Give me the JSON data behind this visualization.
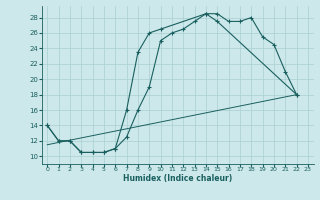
{
  "xlabel": "Humidex (Indice chaleur)",
  "xlim": [
    -0.5,
    23.5
  ],
  "ylim": [
    9.0,
    29.5
  ],
  "xticks": [
    0,
    1,
    2,
    3,
    4,
    5,
    6,
    7,
    8,
    9,
    10,
    11,
    12,
    13,
    14,
    15,
    16,
    17,
    18,
    19,
    20,
    21,
    22,
    23
  ],
  "yticks": [
    10,
    12,
    14,
    16,
    18,
    20,
    22,
    24,
    26,
    28
  ],
  "background_color": "#cce8ea",
  "grid_color": "#aacfd2",
  "line_color": "#1a5f5f",
  "line1": {
    "x": [
      0,
      1,
      2,
      3,
      4,
      5,
      6,
      7,
      8,
      9,
      10,
      11,
      12,
      13,
      14,
      15,
      22
    ],
    "y": [
      14,
      12,
      12,
      10.5,
      10.5,
      10.5,
      11,
      12.5,
      16,
      19,
      25,
      26,
      26.5,
      27.5,
      28.5,
      27.5,
      18
    ]
  },
  "line2": {
    "x": [
      0,
      1,
      2,
      3,
      4,
      5,
      6,
      7,
      8,
      9,
      10,
      14,
      15,
      16,
      17,
      18,
      19,
      20,
      21,
      22
    ],
    "y": [
      14,
      12,
      12,
      10.5,
      10.5,
      10.5,
      11,
      16,
      23.5,
      26,
      26.5,
      28.5,
      28.5,
      27.5,
      27.5,
      28,
      25.5,
      24.5,
      21,
      18
    ]
  },
  "line3": {
    "x": [
      0,
      22
    ],
    "y": [
      11.5,
      18
    ]
  },
  "figsize": [
    3.2,
    2.0
  ],
  "dpi": 100
}
